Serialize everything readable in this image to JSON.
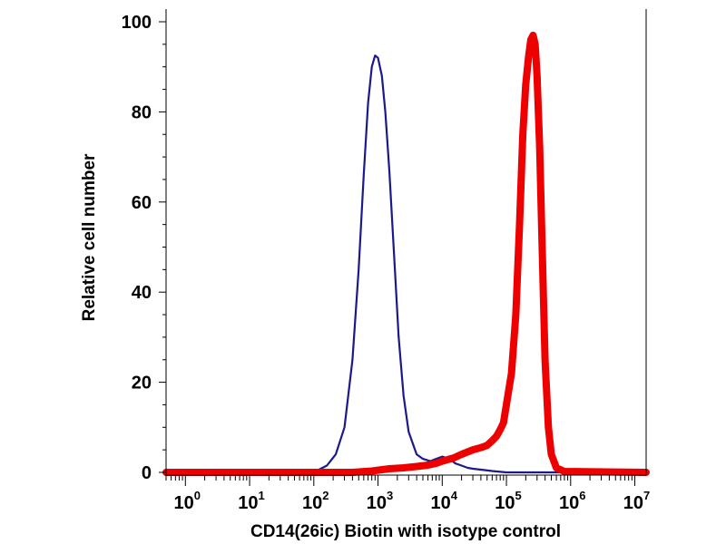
{
  "chart_data": {
    "type": "area",
    "title": "",
    "xlabel": "CD14(26ic) Biotin with isotype control",
    "ylabel": "Relative cell number",
    "xscale": "log",
    "xlim": [
      0.5,
      15000000
    ],
    "ylim": [
      0,
      100
    ],
    "x_ticks": [
      {
        "base": "10",
        "exp": "0",
        "value": 1
      },
      {
        "base": "10",
        "exp": "1",
        "value": 10
      },
      {
        "base": "10",
        "exp": "2",
        "value": 100
      },
      {
        "base": "10",
        "exp": "3",
        "value": 1000
      },
      {
        "base": "10",
        "exp": "4",
        "value": 10000
      },
      {
        "base": "10",
        "exp": "5",
        "value": 100000
      },
      {
        "base": "10",
        "exp": "6",
        "value": 1000000
      },
      {
        "base": "10",
        "exp": "7",
        "value": 10000000
      }
    ],
    "y_ticks": [
      {
        "label": "0",
        "value": 0
      },
      {
        "label": "20",
        "value": 20
      },
      {
        "label": "40",
        "value": 40
      },
      {
        "label": "60",
        "value": 60
      },
      {
        "label": "80",
        "value": 80
      },
      {
        "label": "100",
        "value": 100
      }
    ],
    "grid": false,
    "legend": "none",
    "series": [
      {
        "color": "#1a1a8c",
        "style": "thin-line",
        "x": [
          0.5,
          40,
          80,
          120,
          160,
          220,
          300,
          400,
          500,
          600,
          700,
          800,
          900,
          1000,
          1150,
          1300,
          1500,
          1800,
          2100,
          2500,
          3000,
          4000,
          5000,
          6500,
          8000,
          10000,
          13000,
          16000,
          20000,
          25000,
          30000,
          40000,
          60000,
          100000,
          15000000
        ],
        "y": [
          0,
          0,
          0.2,
          0.6,
          1.5,
          4,
          10,
          25,
          45,
          66,
          82,
          90,
          92.5,
          92,
          88,
          80,
          67,
          47,
          30,
          17,
          9,
          4,
          3,
          2.5,
          3,
          3.5,
          3,
          2,
          1.5,
          1,
          0.8,
          0.6,
          0.3,
          0,
          0
        ]
      },
      {
        "color": "#ee0000",
        "style": "thick-line",
        "x": [
          0.5,
          400,
          800,
          1500,
          2500,
          4000,
          6000,
          8000,
          10000,
          15000,
          20000,
          30000,
          40000,
          50000,
          60000,
          70000,
          80000,
          90000,
          100000,
          120000,
          140000,
          160000,
          180000,
          200000,
          220000,
          240000,
          260000,
          280000,
          300000,
          330000,
          360000,
          400000,
          450000,
          500000,
          600000,
          800000,
          15000000
        ],
        "y": [
          0,
          0,
          0.3,
          0.8,
          1,
          1.3,
          1.6,
          2,
          2.5,
          3.2,
          4,
          5,
          5.5,
          6,
          7,
          8,
          9.5,
          11,
          15,
          22,
          35,
          55,
          75,
          86,
          92,
          96,
          97,
          95,
          88,
          72,
          50,
          25,
          10,
          4,
          1,
          0.2,
          0
        ]
      }
    ]
  }
}
